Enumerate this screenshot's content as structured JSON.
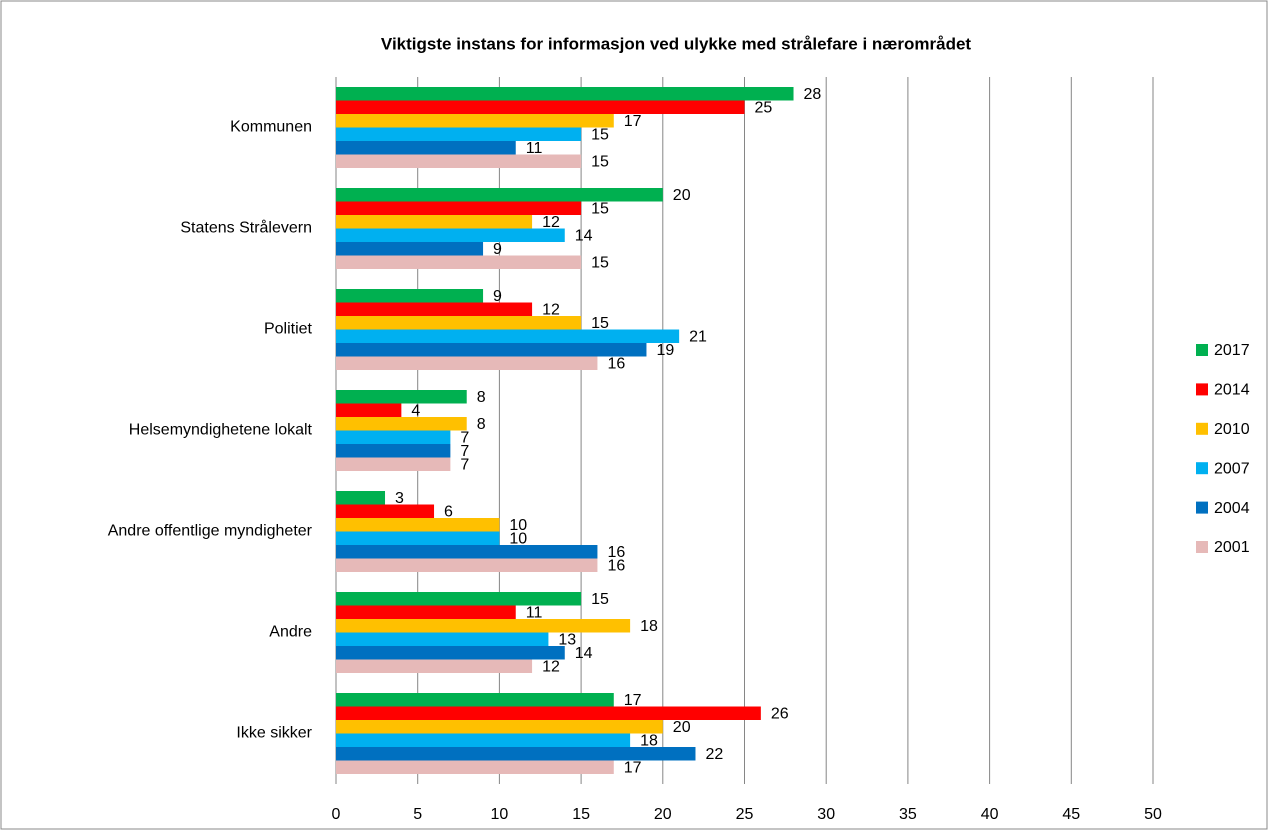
{
  "chart_data": {
    "type": "hbar",
    "title": "Viktigste instans for informasjon ved ulykke med strålefare i nærområdet",
    "categories": [
      "Kommunen",
      "Statens Strålevern",
      "Politiet",
      "Helsemyndighetene lokalt",
      "Andre offentlige myndigheter",
      "Andre",
      "Ikke sikker"
    ],
    "series": [
      {
        "name": "2017",
        "color": "#00b050",
        "values": [
          28,
          20,
          9,
          8,
          3,
          15,
          17
        ]
      },
      {
        "name": "2014",
        "color": "#ff0000",
        "values": [
          25,
          15,
          12,
          4,
          6,
          11,
          26
        ]
      },
      {
        "name": "2010",
        "color": "#ffc000",
        "values": [
          17,
          12,
          15,
          8,
          10,
          18,
          20
        ]
      },
      {
        "name": "2007",
        "color": "#00b0f0",
        "values": [
          15,
          14,
          21,
          7,
          10,
          13,
          18
        ]
      },
      {
        "name": "2004",
        "color": "#0070c0",
        "values": [
          11,
          9,
          19,
          7,
          16,
          14,
          22
        ]
      },
      {
        "name": "2001",
        "color": "#e6b9b8",
        "values": [
          15,
          15,
          16,
          7,
          16,
          12,
          17
        ]
      }
    ],
    "xlim": [
      0,
      50
    ],
    "xticks": [
      0,
      5,
      10,
      15,
      20,
      25,
      30,
      35,
      40,
      45,
      50
    ],
    "grid": true,
    "legend": "right"
  }
}
